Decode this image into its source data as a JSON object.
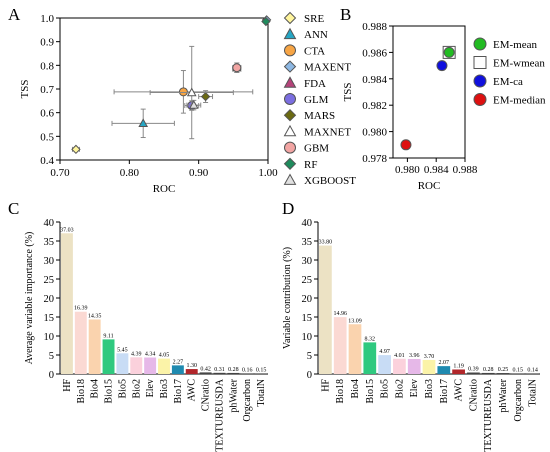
{
  "panel_labels": {
    "a": "A",
    "b": "B",
    "c": "C",
    "d": "D"
  },
  "chart_data": [
    {
      "panel": "A",
      "type": "scatter",
      "xlabel": "ROC",
      "ylabel": "TSS",
      "xlim": [
        0.7,
        1.0
      ],
      "ylim": [
        0.4,
        1.0
      ],
      "xticks": [
        "0.70",
        "0.80",
        "0.90",
        "1.00"
      ],
      "yticks": [
        "0.4",
        "0.5",
        "0.6",
        "0.7",
        "0.8",
        "0.9",
        "1.0"
      ],
      "legend_position": "right",
      "series": [
        {
          "name": "SRE",
          "x": 0.723,
          "y": 0.445,
          "xerr": 0.005,
          "yerr": 0.005,
          "marker": "diamond",
          "color": "#fff59d"
        },
        {
          "name": "ANN",
          "x": 0.82,
          "y": 0.555,
          "xerr": 0.045,
          "yerr": 0.06,
          "marker": "triangle",
          "color": "#26a6c4"
        },
        {
          "name": "CTA",
          "x": 0.878,
          "y": 0.688,
          "xerr": 0.1,
          "yerr": 0.09,
          "marker": "circle",
          "color": "#f7a545"
        },
        {
          "name": "MAXENT",
          "x": 0.998,
          "y": 0.992,
          "xerr": 0.001,
          "yerr": 0.005,
          "marker": "diamond",
          "color": "#8eb8e3"
        },
        {
          "name": "FDA",
          "x": 0.955,
          "y": 0.79,
          "xerr": 0.005,
          "yerr": 0.02,
          "marker": "triangle",
          "color": "#b5437a"
        },
        {
          "name": "GLM",
          "x": 0.89,
          "y": 0.63,
          "xerr": 0.01,
          "yerr": 0.02,
          "marker": "circle",
          "color": "#7b6ee0"
        },
        {
          "name": "MARS",
          "x": 0.91,
          "y": 0.668,
          "xerr": 0.01,
          "yerr": 0.025,
          "marker": "diamond",
          "color": "#6b6a12"
        },
        {
          "name": "MAXNET",
          "x": 0.89,
          "y": 0.685,
          "xerr": 0.06,
          "yerr": 0.195,
          "marker": "triangle",
          "color": "#ffffff"
        },
        {
          "name": "GBM",
          "x": 0.955,
          "y": 0.79,
          "xerr": 0.006,
          "yerr": 0.02,
          "marker": "circle",
          "color": "#f2a5a3"
        },
        {
          "name": "RF",
          "x": 0.997,
          "y": 0.985,
          "xerr": 0.002,
          "yerr": 0.005,
          "marker": "diamond",
          "color": "#1f8a5c"
        },
        {
          "name": "XGBOOST",
          "x": 0.893,
          "y": 0.632,
          "xerr": 0.01,
          "yerr": 0.02,
          "marker": "triangle",
          "color": "#e0e0e0"
        }
      ]
    },
    {
      "panel": "B",
      "type": "scatter",
      "xlabel": "ROC",
      "ylabel": "TSS",
      "xlim": [
        0.978,
        0.988
      ],
      "ylim": [
        0.978,
        0.988
      ],
      "xticks": [
        "0.980",
        "0.984",
        "0.988"
      ],
      "yticks": [
        "0.978",
        "0.980",
        "0.982",
        "0.984",
        "0.986",
        "0.988"
      ],
      "legend_position": "right",
      "series": [
        {
          "name": "EM-mean",
          "x": 0.9858,
          "y": 0.986,
          "marker": "circle",
          "color": "#22bb22"
        },
        {
          "name": "EM-wmean",
          "x": 0.9858,
          "y": 0.986,
          "marker": "square",
          "color": "#ffffff"
        },
        {
          "name": "EM-ca",
          "x": 0.9848,
          "y": 0.985,
          "marker": "circle",
          "color": "#1010dd"
        },
        {
          "name": "EM-median",
          "x": 0.9798,
          "y": 0.979,
          "marker": "circle",
          "color": "#dd1010"
        }
      ]
    },
    {
      "panel": "C",
      "type": "bar",
      "xlabel": "",
      "ylabel": "Average variable importance (%)",
      "ylim": [
        0,
        40
      ],
      "yticks": [
        "0",
        "5",
        "10",
        "15",
        "20",
        "25",
        "30",
        "35",
        "40"
      ],
      "categories": [
        "HF",
        "Bio18",
        "Bio4",
        "Bio15",
        "Bio5",
        "Bio2",
        "Elev",
        "Bio3",
        "Bio17",
        "AWC",
        "CNratio",
        "TEXTUREUSDA",
        "phWater",
        "Orgcarbon",
        "TotalN"
      ],
      "values": [
        37.03,
        16.39,
        14.35,
        9.11,
        5.45,
        4.39,
        4.34,
        4.05,
        2.27,
        1.3,
        0.42,
        0.31,
        0.28,
        0.16,
        0.15
      ],
      "labels": [
        "37.03",
        "16.39",
        "14.35",
        "9.11",
        "5.45",
        "4.39",
        "4.34",
        "4.05",
        "2.27",
        "1.30",
        "0.42",
        "0.31",
        "0.28",
        "0.16",
        "0.15"
      ],
      "colors": [
        "#ece2c4",
        "#fbd9d3",
        "#fad3ae",
        "#2fc97f",
        "#c8dcf5",
        "#fbd1dc",
        "#e6b8e8",
        "#fbf3a8",
        "#1f8ab0",
        "#b1262a",
        "#444444",
        "#444444",
        "#444444",
        "#444444",
        "#444444"
      ]
    },
    {
      "panel": "D",
      "type": "bar",
      "xlabel": "",
      "ylabel": "Variable contribution (%)",
      "ylim": [
        0,
        40
      ],
      "yticks": [
        "0",
        "5",
        "10",
        "15",
        "20",
        "25",
        "30",
        "35",
        "40"
      ],
      "categories": [
        "HF",
        "Bio18",
        "Bio4",
        "Bio15",
        "Bio5",
        "Bio2",
        "Elev",
        "Bio3",
        "Bio17",
        "AWC",
        "CNratio",
        "TEXTUREUSDA",
        "phWater",
        "Orgcarbon",
        "TotalN"
      ],
      "values": [
        33.8,
        14.96,
        13.09,
        8.32,
        4.97,
        4.01,
        3.96,
        3.7,
        2.07,
        1.19,
        0.39,
        0.28,
        0.25,
        0.15,
        0.14
      ],
      "labels": [
        "33.80",
        "14.96",
        "13.09",
        "8.32",
        "4.97",
        "4.01",
        "3.96",
        "3.70",
        "2.07",
        "1.19",
        "0.39",
        "0.28",
        "0.25",
        "0.15",
        "0.14"
      ],
      "colors": [
        "#ece2c4",
        "#fbd9d3",
        "#fad3ae",
        "#2fc97f",
        "#c8dcf5",
        "#fbd1dc",
        "#e6b8e8",
        "#fbf3a8",
        "#1f8ab0",
        "#b1262a",
        "#444444",
        "#444444",
        "#444444",
        "#444444",
        "#444444"
      ]
    }
  ]
}
